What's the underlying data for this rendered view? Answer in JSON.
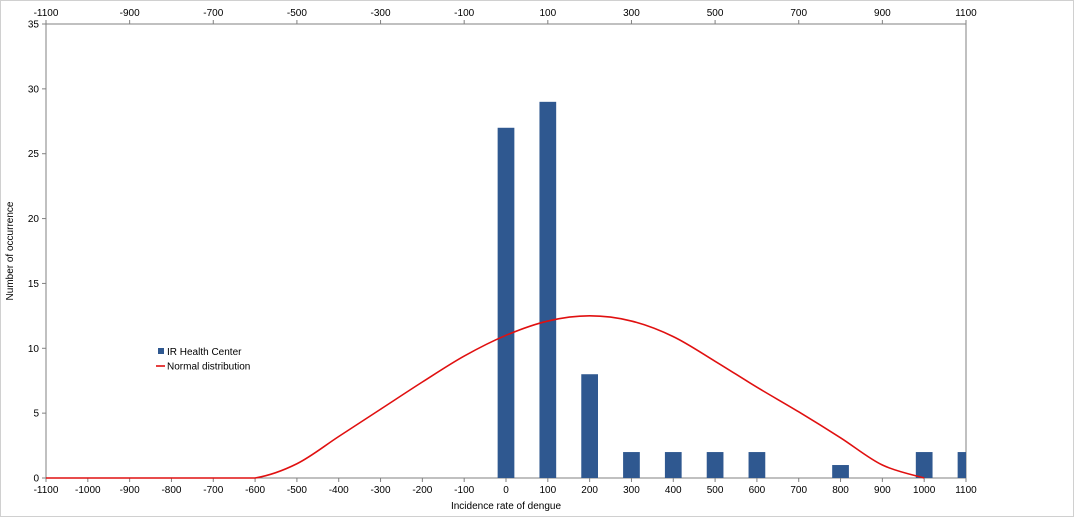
{
  "chart_data": {
    "type": "bar",
    "title": "",
    "xlabel": "Incidence rate of dengue",
    "ylabel": "Number of occurrence",
    "xlim": [
      -1100,
      1100
    ],
    "ylim": [
      0,
      35
    ],
    "yticks": [
      0,
      5,
      10,
      15,
      20,
      25,
      30,
      35
    ],
    "bottom_ticks": [
      "-1100",
      "-1000",
      "-900",
      "-800",
      "-700",
      "-600",
      "-500",
      "-400",
      "-300",
      "-200",
      "-100",
      "0",
      "100",
      "200",
      "300",
      "400",
      "500",
      "600",
      "700",
      "800",
      "900",
      "1000",
      "1100"
    ],
    "top_ticks": [
      "-1100",
      "-900",
      "-700",
      "-500",
      "-300",
      "-100",
      "100",
      "300",
      "500",
      "700",
      "900",
      "1100"
    ],
    "grid": false,
    "legend_position": "left",
    "series": [
      {
        "name": "IR Health Center",
        "kind": "bar",
        "color": "#2f5890",
        "x": [
          0,
          100,
          200,
          300,
          400,
          500,
          600,
          700,
          800,
          900,
          1000,
          1100
        ],
        "values": [
          27,
          29,
          8,
          2,
          2,
          2,
          2,
          0,
          1,
          0,
          2,
          2
        ]
      },
      {
        "name": "Normal distribution",
        "kind": "line",
        "color": "#e01010",
        "x": [
          -1100,
          -1000,
          -900,
          -800,
          -700,
          -600,
          -500,
          -400,
          -300,
          -200,
          -100,
          0,
          100,
          200,
          300,
          400,
          500,
          600,
          700,
          800,
          900,
          1000
        ],
        "values": [
          0,
          0,
          0,
          0,
          0,
          0,
          1.1,
          3.2,
          5.3,
          7.4,
          9.4,
          11.0,
          12.1,
          12.5,
          12.1,
          10.9,
          9.0,
          7.0,
          5.1,
          3.1,
          1.0,
          0
        ]
      }
    ]
  }
}
